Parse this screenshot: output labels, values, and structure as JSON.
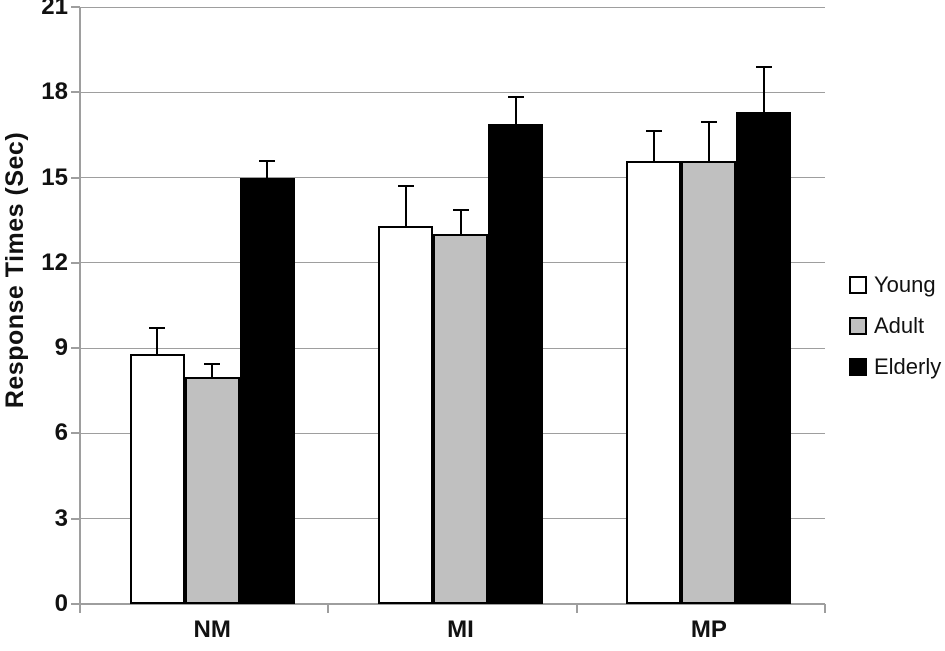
{
  "chart_data": {
    "type": "bar",
    "title": "",
    "ylabel": "Response Times (Sec)",
    "xlabel": "",
    "categories": [
      "NM",
      "MI",
      "MP"
    ],
    "series": [
      {
        "name": "Young",
        "fill": "#ffffff",
        "values": [
          8.8,
          13.3,
          15.6
        ],
        "errors_up": [
          0.9,
          1.4,
          1.05
        ]
      },
      {
        "name": "Adult",
        "fill": "#c0c0c0",
        "values": [
          8.0,
          13.0,
          15.6
        ],
        "errors_up": [
          0.45,
          0.85,
          1.35
        ]
      },
      {
        "name": "Elderly",
        "fill": "#000000",
        "values": [
          15.0,
          16.9,
          17.3
        ],
        "errors_up": [
          0.6,
          0.95,
          1.6
        ]
      }
    ],
    "ylim": [
      0,
      21
    ],
    "yticks": [
      0,
      3,
      6,
      9,
      12,
      15,
      18,
      21
    ],
    "grid": true,
    "legend_position": "right",
    "legend_labels": [
      "Young",
      "Adult",
      "Elderly"
    ],
    "colors": {
      "axis": "#9e9e9e",
      "gridline": "#9e9e9e",
      "bar_border": "#000000",
      "error_bar": "#000000",
      "text": "#111111",
      "background": "#ffffff"
    }
  }
}
